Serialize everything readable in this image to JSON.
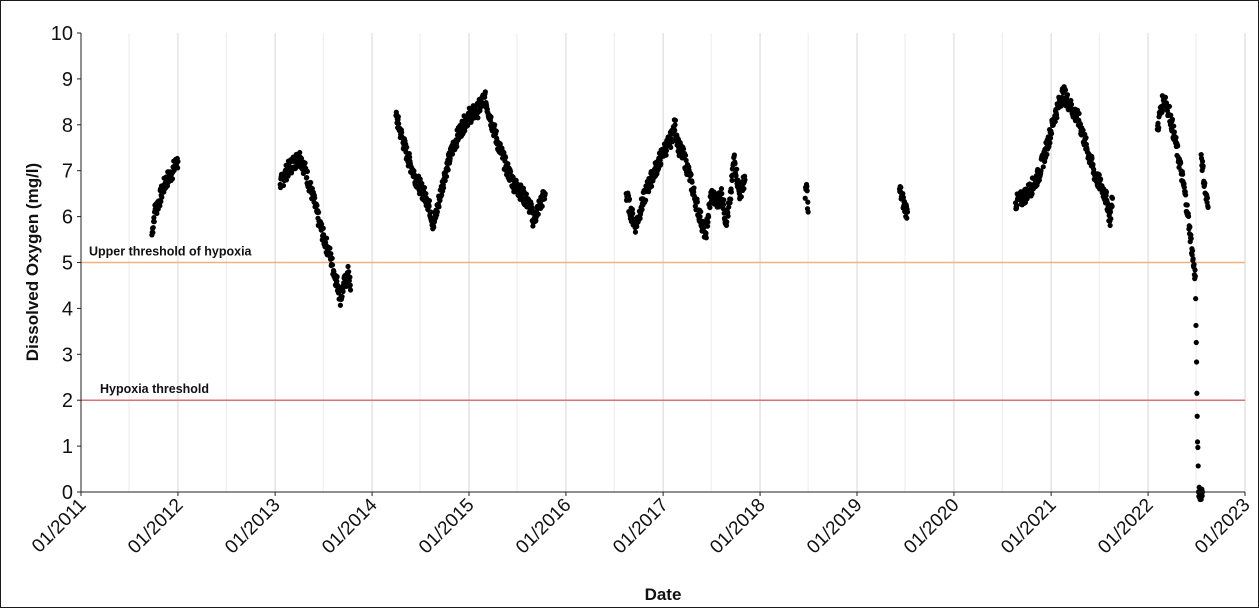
{
  "chart_data": {
    "type": "scatter",
    "xlabel": "Date",
    "ylabel": "Dissolved Oxygen (mg/l)",
    "xlim": [
      "01/2011",
      "01/2023"
    ],
    "ylim": [
      0,
      10
    ],
    "x_ticks": [
      "01/2011",
      "01/2012",
      "01/2013",
      "01/2014",
      "01/2015",
      "01/2016",
      "01/2017",
      "01/2018",
      "01/2019",
      "01/2020",
      "01/2021",
      "01/2022",
      "01/2023"
    ],
    "y_ticks": [
      0,
      1,
      2,
      3,
      4,
      5,
      6,
      7,
      8,
      9,
      10
    ],
    "grid": {
      "vertical": true,
      "horizontal": false
    },
    "thresholds": [
      {
        "label": "Upper threshold of hypoxia",
        "value": 5,
        "color": "#f2b07a"
      },
      {
        "label": "Hypoxia threshold",
        "value": 2,
        "color": "#d9727a"
      }
    ],
    "point_color": "#000000",
    "series": [
      {
        "values": [
          [
            "2011-09-25",
            5.6
          ],
          [
            "2011-10-05",
            6.1
          ],
          [
            "2011-10-20",
            6.3
          ],
          [
            "2011-11-05",
            6.6
          ],
          [
            "2011-11-20",
            6.8
          ],
          [
            "2011-12-05",
            6.9
          ],
          [
            "2011-12-20",
            7.1
          ],
          [
            "2012-01-01",
            7.2
          ],
          [
            "2013-01-20",
            6.7
          ],
          [
            "2013-02-15",
            7.0
          ],
          [
            "2013-03-15",
            7.2
          ],
          [
            "2013-04-05",
            7.3
          ],
          [
            "2013-04-25",
            7.0
          ],
          [
            "2013-05-20",
            6.5
          ],
          [
            "2013-06-15",
            5.9
          ],
          [
            "2013-07-05",
            5.5
          ],
          [
            "2013-07-25",
            5.2
          ],
          [
            "2013-08-10",
            4.8
          ],
          [
            "2013-08-25",
            4.5
          ],
          [
            "2013-09-05",
            4.2
          ],
          [
            "2013-09-15",
            4.5
          ],
          [
            "2013-09-25",
            4.6
          ],
          [
            "2013-10-05",
            4.8
          ],
          [
            "2013-10-12",
            4.4
          ],
          [
            "2014-04-01",
            8.2
          ],
          [
            "2014-04-20",
            7.8
          ],
          [
            "2014-05-15",
            7.3
          ],
          [
            "2014-06-10",
            6.9
          ],
          [
            "2014-07-05",
            6.6
          ],
          [
            "2014-07-25",
            6.4
          ],
          [
            "2014-08-10",
            6.1
          ],
          [
            "2014-08-20",
            5.8
          ],
          [
            "2014-10-01",
            6.9
          ],
          [
            "2014-11-01",
            7.5
          ],
          [
            "2014-12-01",
            7.9
          ],
          [
            "2015-01-01",
            8.2
          ],
          [
            "2015-02-01",
            8.3
          ],
          [
            "2015-03-01",
            8.6
          ],
          [
            "2015-03-20",
            8.2
          ],
          [
            "2015-04-20",
            7.6
          ],
          [
            "2015-05-20",
            7.1
          ],
          [
            "2015-06-20",
            6.7
          ],
          [
            "2015-07-20",
            6.5
          ],
          [
            "2015-08-20",
            6.2
          ],
          [
            "2015-09-01",
            5.9
          ],
          [
            "2015-09-20",
            6.2
          ],
          [
            "2015-10-15",
            6.5
          ],
          [
            "2016-08-15",
            6.5
          ],
          [
            "2016-09-01",
            6.1
          ],
          [
            "2016-09-20",
            5.8
          ],
          [
            "2016-10-10",
            6.2
          ],
          [
            "2016-11-01",
            6.6
          ],
          [
            "2016-12-01",
            7.0
          ],
          [
            "2017-01-01",
            7.4
          ],
          [
            "2017-02-01",
            7.7
          ],
          [
            "2017-02-15",
            8.0
          ],
          [
            "2017-03-01",
            7.5
          ],
          [
            "2017-03-20",
            7.3
          ],
          [
            "2017-04-10",
            6.9
          ],
          [
            "2017-05-01",
            6.4
          ],
          [
            "2017-05-20",
            6.0
          ],
          [
            "2017-06-10",
            5.6
          ],
          [
            "2017-07-01",
            6.5
          ],
          [
            "2017-07-20",
            6.3
          ],
          [
            "2017-08-10",
            6.5
          ],
          [
            "2017-08-25",
            5.9
          ],
          [
            "2017-09-10",
            6.3
          ],
          [
            "2017-09-25",
            7.3
          ],
          [
            "2017-10-15",
            6.5
          ],
          [
            "2017-11-05",
            6.8
          ],
          [
            "2018-06-20",
            6.4
          ],
          [
            "2018-06-25",
            6.7
          ],
          [
            "2018-07-01",
            6.1
          ],
          [
            "2019-06-10",
            6.6
          ],
          [
            "2019-06-20",
            6.4
          ],
          [
            "2019-07-01",
            6.2
          ],
          [
            "2019-07-10",
            6.1
          ],
          [
            "2020-08-20",
            6.3
          ],
          [
            "2020-09-15",
            6.4
          ],
          [
            "2020-10-15",
            6.6
          ],
          [
            "2020-11-15",
            6.9
          ],
          [
            "2020-12-15",
            7.5
          ],
          [
            "2021-01-15",
            8.2
          ],
          [
            "2021-02-15",
            8.7
          ],
          [
            "2021-03-15",
            8.4
          ],
          [
            "2021-04-15",
            8.1
          ],
          [
            "2021-05-15",
            7.5
          ],
          [
            "2021-06-15",
            6.9
          ],
          [
            "2021-07-15",
            6.6
          ],
          [
            "2021-08-01",
            6.3
          ],
          [
            "2021-08-10",
            5.9
          ],
          [
            "2021-08-20",
            6.4
          ],
          [
            "2022-02-05",
            7.9
          ],
          [
            "2022-02-20",
            8.4
          ],
          [
            "2022-03-05",
            8.6
          ],
          [
            "2022-03-25",
            8.2
          ],
          [
            "2022-04-15",
            7.6
          ],
          [
            "2022-05-05",
            7.0
          ],
          [
            "2022-05-20",
            6.5
          ],
          [
            "2022-06-05",
            5.8
          ],
          [
            "2022-06-15",
            5.3
          ],
          [
            "2022-06-22",
            4.9
          ],
          [
            "2022-06-28",
            4.7
          ],
          [
            "2022-07-05",
            1.65
          ],
          [
            "2022-07-10",
            0.0
          ],
          [
            "2022-07-25",
            0.0
          ],
          [
            "2022-07-20",
            7.35
          ],
          [
            "2022-08-05",
            6.5
          ],
          [
            "2022-08-15",
            6.2
          ]
        ]
      }
    ]
  }
}
